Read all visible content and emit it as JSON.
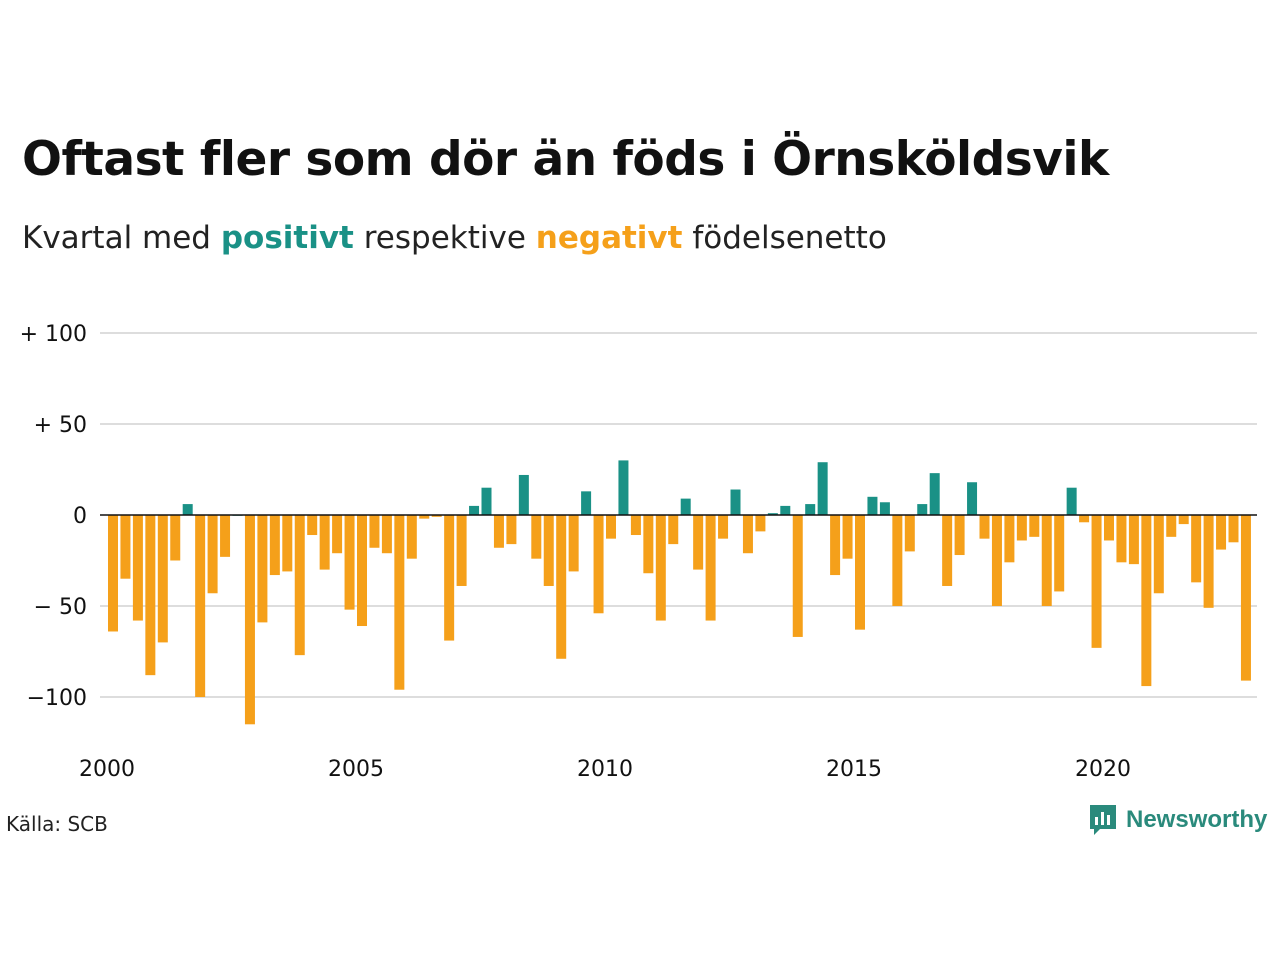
{
  "title": "Oftast fler som dör än föds i Örnsköldsvik",
  "subtitle": {
    "prefix": "Kvartal med ",
    "positive": "positivt",
    "middle": " respektive ",
    "negative": "negativt",
    "suffix": " födelsenetto"
  },
  "source": "Källa: SCB",
  "logo": {
    "text": "Newsworthy",
    "icon": "newsworthy-logo-icon"
  },
  "colors": {
    "positive": "#1a9186",
    "negative": "#f5a01a",
    "grid": "#dddddd",
    "zero": "#111111"
  },
  "chart_data": {
    "type": "bar",
    "title": "Oftast fler som dör än föds i Örnsköldsvik",
    "subtitle": "Kvartal med positivt respektive negativt födelsenetto",
    "x_start": "2000 Q1",
    "frequency": "quarter",
    "ylim": [
      -120,
      100
    ],
    "yticks": [
      100,
      50,
      0,
      -50,
      -100
    ],
    "ytick_labels": [
      "+ 100",
      "+  50",
      "0",
      "− 50",
      "−100"
    ],
    "xticks": [
      "2000",
      "2005",
      "2010",
      "2015",
      "2020"
    ],
    "grid": true,
    "values": [
      -64,
      -35,
      -58,
      -88,
      -70,
      -25,
      6,
      -100,
      -43,
      -23,
      0,
      -115,
      -59,
      -33,
      -31,
      -77,
      -11,
      -30,
      -21,
      -52,
      -61,
      -18,
      -21,
      -96,
      -24,
      -2,
      -1,
      -69,
      -39,
      5,
      15,
      -18,
      -16,
      22,
      -24,
      -39,
      -79,
      -31,
      13,
      -54,
      -13,
      30,
      -11,
      -32,
      -58,
      -16,
      9,
      -30,
      -58,
      -13,
      14,
      -21,
      -9,
      1,
      5,
      -67,
      6,
      29,
      -33,
      -24,
      -63,
      10,
      7,
      -50,
      -20,
      6,
      23,
      -39,
      -22,
      18,
      -13,
      -50,
      -26,
      -14,
      -12,
      -50,
      -42,
      15,
      -4,
      -73,
      -14,
      -26,
      -27,
      -94,
      -43,
      -12,
      -5,
      -37,
      -51,
      -19,
      -15,
      -91
    ]
  }
}
